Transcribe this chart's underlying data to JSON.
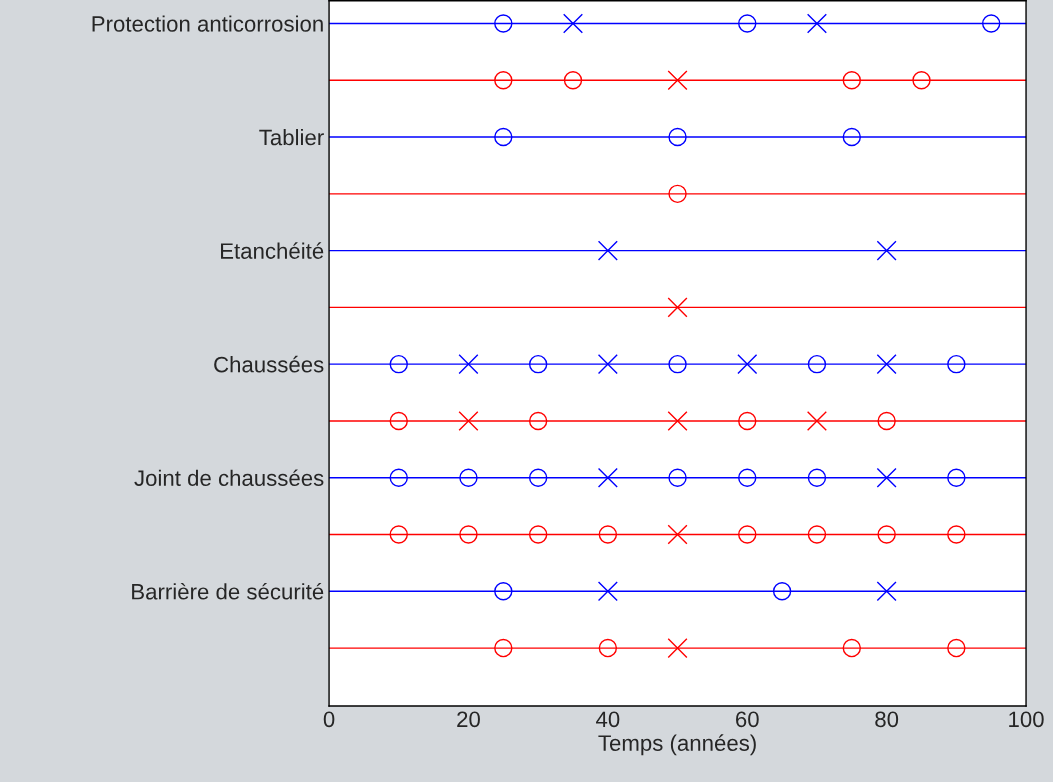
{
  "chart_data": {
    "type": "scatter",
    "orientation": "horizontal",
    "xlabel": "Temps (années)",
    "xlim": [
      0,
      100
    ],
    "xticks": [
      0,
      20,
      40,
      60,
      80,
      100
    ],
    "grid": "y",
    "categories": [
      "Protection anticorrosion",
      null,
      "Tablier",
      null,
      "Etanchéité",
      null,
      "Chaussées",
      null,
      "Joint de chaussées",
      null,
      "Barrière de sécurité",
      null
    ],
    "series": [
      {
        "marker": "circle",
        "colors": [
          "#0000ff",
          "#ff0000",
          "#0000ff",
          "#ff0000",
          "#0000ff",
          "#ff0000",
          "#0000ff",
          "#ff0000",
          "#0000ff",
          "#ff0000",
          "#0000ff",
          "#ff0000"
        ],
        "values": [
          25,
          25,
          25,
          50,
          null,
          null,
          10,
          10,
          10,
          10,
          25,
          25
        ]
      },
      {
        "marker": "circle",
        "colors": [
          "#0000ff",
          "#ff0000",
          "#0000ff",
          "#ff0000",
          "#0000ff",
          "#ff0000",
          "#0000ff",
          "#ff0000",
          "#0000ff",
          "#ff0000",
          "#0000ff",
          "#ff0000"
        ],
        "values": [
          60,
          35,
          50,
          null,
          null,
          null,
          30,
          30,
          20,
          20,
          65,
          40
        ]
      },
      {
        "marker": "circle",
        "colors": [
          "#0000ff",
          "#ff0000",
          "#0000ff",
          "#ff0000",
          "#0000ff",
          "#ff0000",
          "#0000ff",
          "#ff0000",
          "#0000ff",
          "#ff0000",
          "#0000ff",
          "#ff0000"
        ],
        "values": [
          95,
          75,
          75,
          null,
          null,
          null,
          50,
          60,
          30,
          30,
          null,
          75
        ]
      },
      {
        "marker": "circle",
        "colors": [
          "#0000ff",
          "#ff0000",
          "#0000ff",
          "#ff0000",
          "#0000ff",
          "#ff0000",
          "#0000ff",
          "#ff0000",
          "#0000ff",
          "#ff0000",
          "#0000ff",
          "#ff0000"
        ],
        "values": [
          null,
          85,
          null,
          null,
          null,
          null,
          70,
          80,
          50,
          40,
          null,
          90
        ]
      },
      {
        "marker": "circle",
        "colors": [
          "#0000ff",
          "#ff0000",
          "#0000ff",
          "#ff0000",
          "#0000ff",
          "#ff0000",
          "#0000ff",
          "#ff0000",
          "#0000ff",
          "#ff0000",
          "#0000ff",
          "#ff0000"
        ],
        "values": [
          null,
          null,
          null,
          null,
          null,
          null,
          90,
          null,
          60,
          60,
          null,
          null
        ]
      },
      {
        "marker": "circle",
        "colors": [
          "#0000ff",
          "#ff0000",
          "#0000ff",
          "#ff0000",
          "#0000ff",
          "#ff0000",
          "#0000ff",
          "#ff0000",
          "#0000ff",
          "#ff0000",
          "#0000ff",
          "#ff0000"
        ],
        "values": [
          null,
          null,
          null,
          null,
          null,
          null,
          null,
          null,
          70,
          70,
          null,
          null
        ]
      },
      {
        "marker": "circle",
        "colors": [
          "#0000ff",
          "#ff0000",
          "#0000ff",
          "#ff0000",
          "#0000ff",
          "#ff0000",
          "#0000ff",
          "#ff0000",
          "#0000ff",
          "#ff0000",
          "#0000ff",
          "#ff0000"
        ],
        "values": [
          null,
          null,
          null,
          null,
          null,
          null,
          null,
          null,
          90,
          80,
          null,
          null
        ]
      },
      {
        "marker": "circle",
        "colors": [
          "#0000ff",
          "#ff0000",
          "#0000ff",
          "#ff0000",
          "#0000ff",
          "#ff0000",
          "#0000ff",
          "#ff0000",
          "#0000ff",
          "#ff0000",
          "#0000ff",
          "#ff0000"
        ],
        "values": [
          null,
          null,
          null,
          null,
          null,
          null,
          null,
          null,
          null,
          90,
          null,
          null
        ]
      },
      {
        "marker": "cross",
        "colors": [
          "#0000ff",
          "#ff0000",
          "#0000ff",
          "#ff0000",
          "#0000ff",
          "#ff0000",
          "#0000ff",
          "#ff0000",
          "#0000ff",
          "#ff0000",
          "#0000ff",
          "#ff0000"
        ],
        "values": [
          35,
          50,
          null,
          null,
          40,
          50,
          20,
          20,
          40,
          50,
          40,
          50
        ]
      },
      {
        "marker": "cross",
        "colors": [
          "#0000ff",
          "#ff0000",
          "#0000ff",
          "#ff0000",
          "#0000ff",
          "#ff0000",
          "#0000ff",
          "#ff0000",
          "#0000ff",
          "#ff0000",
          "#0000ff",
          "#ff0000"
        ],
        "values": [
          70,
          null,
          null,
          null,
          80,
          null,
          40,
          50,
          80,
          null,
          80,
          null
        ]
      },
      {
        "marker": "cross",
        "colors": [
          "#0000ff",
          "#ff0000",
          "#0000ff",
          "#ff0000",
          "#0000ff",
          "#ff0000",
          "#0000ff",
          "#ff0000",
          "#0000ff",
          "#ff0000",
          "#0000ff",
          "#ff0000"
        ],
        "values": [
          null,
          null,
          null,
          null,
          null,
          null,
          60,
          70,
          null,
          null,
          null,
          null
        ]
      },
      {
        "marker": "cross",
        "colors": [
          "#0000ff",
          "#ff0000",
          "#0000ff",
          "#ff0000",
          "#0000ff",
          "#ff0000",
          "#0000ff",
          "#ff0000",
          "#0000ff",
          "#ff0000",
          "#0000ff",
          "#ff0000"
        ],
        "values": [
          null,
          null,
          null,
          null,
          null,
          null,
          80,
          null,
          null,
          null,
          null,
          null
        ]
      }
    ]
  }
}
